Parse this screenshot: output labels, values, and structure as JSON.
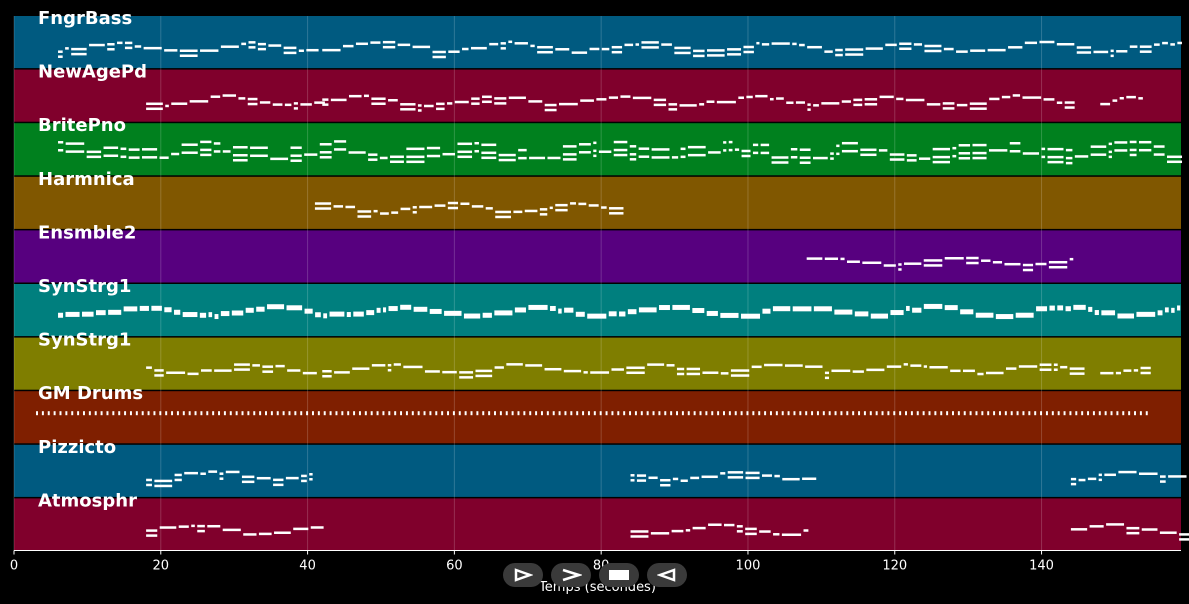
{
  "tracks": [
    {
      "name": "FngrBass",
      "color": "#005a80"
    },
    {
      "name": "NewAgePd",
      "color": "#80002c"
    },
    {
      "name": "BritePno",
      "color": "#00801e"
    },
    {
      "name": "Harmnica",
      "color": "#805700"
    },
    {
      "name": "Ensmble2",
      "color": "#57007f"
    },
    {
      "name": "SynStrg1",
      "color": "#007f7e"
    },
    {
      "name": "SynStrg1",
      "color": "#7f7e00"
    },
    {
      "name": "GM Drums",
      "color": "#7f1f00"
    },
    {
      "name": "Pizzicto",
      "color": "#005a80"
    },
    {
      "name": "Atmosphr",
      "color": "#80002c"
    }
  ],
  "axis": {
    "xlabel": "Temps (secondes)",
    "ticks": [
      0,
      20,
      40,
      60,
      80,
      100,
      120,
      140
    ],
    "xmax": 159
  },
  "controls": [
    {
      "name": "play-button",
      "icon": "play-icon"
    },
    {
      "name": "forward-button",
      "icon": "forward-icon"
    },
    {
      "name": "stop-button",
      "icon": "stop-icon"
    },
    {
      "name": "back-button",
      "icon": "back-icon"
    }
  ],
  "segments": [
    [
      [
        6,
        41
      ],
      [
        42,
        159
      ]
    ],
    [
      [
        18,
        41
      ],
      [
        42,
        144
      ],
      [
        148,
        154
      ]
    ],
    [
      [
        6,
        159
      ]
    ],
    [
      [
        41,
        83
      ]
    ],
    [
      [
        108,
        144
      ]
    ],
    [
      [
        6,
        159
      ]
    ],
    [
      [
        18,
        41
      ],
      [
        42,
        144
      ],
      [
        148,
        154
      ]
    ],
    [
      [
        3,
        155
      ]
    ],
    [
      [
        18,
        41
      ],
      [
        84,
        108
      ],
      [
        144,
        159
      ]
    ],
    [
      [
        18,
        41
      ],
      [
        84,
        108
      ],
      [
        144,
        159
      ]
    ]
  ]
}
